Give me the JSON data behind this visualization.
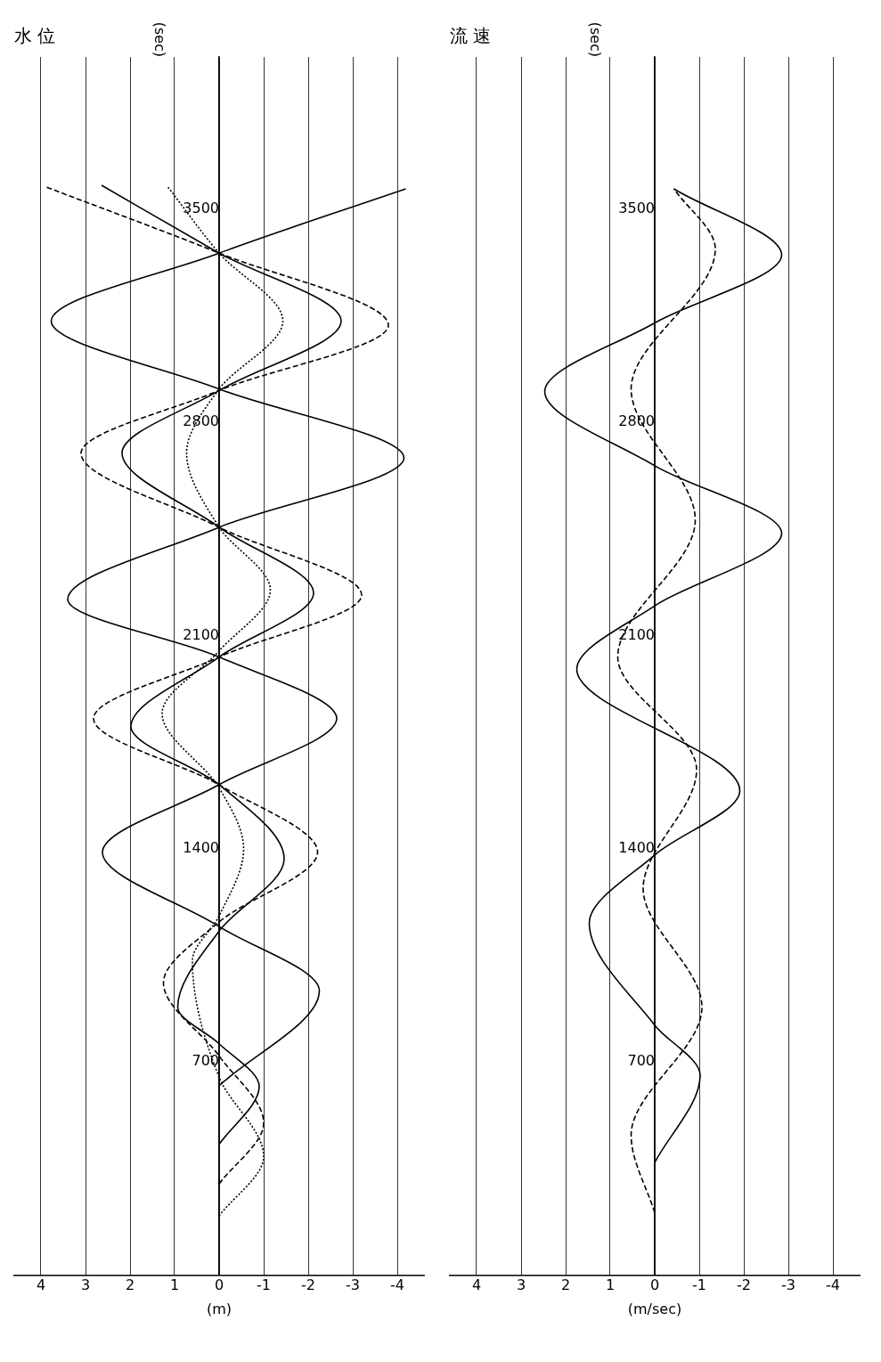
{
  "chart_data": [
    {
      "type": "line",
      "title": "水 位",
      "xlabel": "(m)",
      "ylabel": "(sec)",
      "orientation": "horizontal",
      "xlim": [
        4.6,
        -4.6
      ],
      "xticks": [
        4,
        3,
        2,
        1,
        0,
        -1,
        -2,
        -3,
        -4
      ],
      "ylim": [
        0,
        4000
      ],
      "yticks": [
        700,
        1400,
        2100,
        2800,
        3500
      ],
      "grid": "x",
      "legend": false,
      "marker": "none",
      "series": [
        {
          "color": "#000000",
          "line_style": "solid",
          "x": [
            622,
            934,
            1145,
            1389,
            1611,
            1828,
            2030,
            2219,
            2456,
            2684,
            2910,
            3133,
            3356,
            3567
          ],
          "values": [
            0,
            -2.25,
            0,
            2.62,
            0,
            -2.64,
            0,
            3.4,
            0,
            -4.15,
            0,
            3.77,
            0,
            -4.19
          ]
        },
        {
          "color": "#000000",
          "line_style": "dashed",
          "x": [
            300,
            500,
            720,
            960,
            1160,
            1389,
            1610,
            1828,
            2030,
            2233,
            2456,
            2699,
            2905,
            3119,
            3356,
            3573
          ],
          "values": [
            0,
            -1.0,
            0,
            1.25,
            0,
            -2.21,
            0,
            2.82,
            0,
            -3.2,
            0,
            3.1,
            0,
            -3.8,
            0,
            3.88
          ]
        },
        {
          "color": "#000000",
          "line_style": "solid",
          "x": [
            430,
            620,
            760,
            880,
            1130,
            1367,
            1611,
            1802,
            2030,
            2240,
            2456,
            2700,
            2905,
            3133,
            3356,
            3579
          ],
          "values": [
            0,
            -0.9,
            0,
            0.93,
            0,
            -1.46,
            0,
            1.98,
            0,
            -2.12,
            0,
            2.18,
            0,
            -2.74,
            0,
            2.64
          ]
        },
        {
          "color": "#000000",
          "line_style": "dotted",
          "x": [
            195,
            390,
            650,
            1033,
            1180,
            1400,
            1600,
            1845,
            2050,
            2250,
            2456,
            2700,
            2910,
            3133,
            3356,
            3573
          ],
          "values": [
            0,
            -1.0,
            0,
            0.6,
            0,
            -0.55,
            0,
            1.28,
            0,
            -1.15,
            0,
            0.73,
            0,
            -1.43,
            0,
            1.15
          ]
        }
      ]
    },
    {
      "type": "line",
      "title": "流 速",
      "xlabel": "(m/sec)",
      "ylabel": "(sec)",
      "orientation": "horizontal",
      "xlim": [
        4.6,
        -4.6
      ],
      "xticks": [
        4,
        3,
        2,
        1,
        0,
        -1,
        -2,
        -3,
        -4
      ],
      "ylim": [
        0,
        4000
      ],
      "yticks": [
        700,
        1400,
        2100,
        2800,
        3500
      ],
      "grid": "x",
      "legend": false,
      "marker": "none",
      "series": [
        {
          "color": "#000000",
          "line_style": "solid",
          "x": [
            370,
            657,
            821,
            1157,
            1380,
            1591,
            1990,
            2198,
            2436,
            2658,
            2902,
            3127,
            3350,
            3567
          ],
          "values": [
            0,
            -1.02,
            0,
            1.47,
            0,
            -1.91,
            1.75,
            0,
            -2.85,
            0,
            2.47,
            0,
            -2.85,
            -0.43
          ]
        },
        {
          "color": "#000000",
          "line_style": "dashed",
          "x": [
            205,
            460,
            880,
            1270,
            1660,
            2030,
            2480,
            2910,
            3370,
            3567
          ],
          "values": [
            0,
            0.53,
            -1.06,
            0.26,
            -0.94,
            0.83,
            -0.91,
            0.53,
            -1.36,
            -0.43
          ]
        }
      ]
    }
  ]
}
